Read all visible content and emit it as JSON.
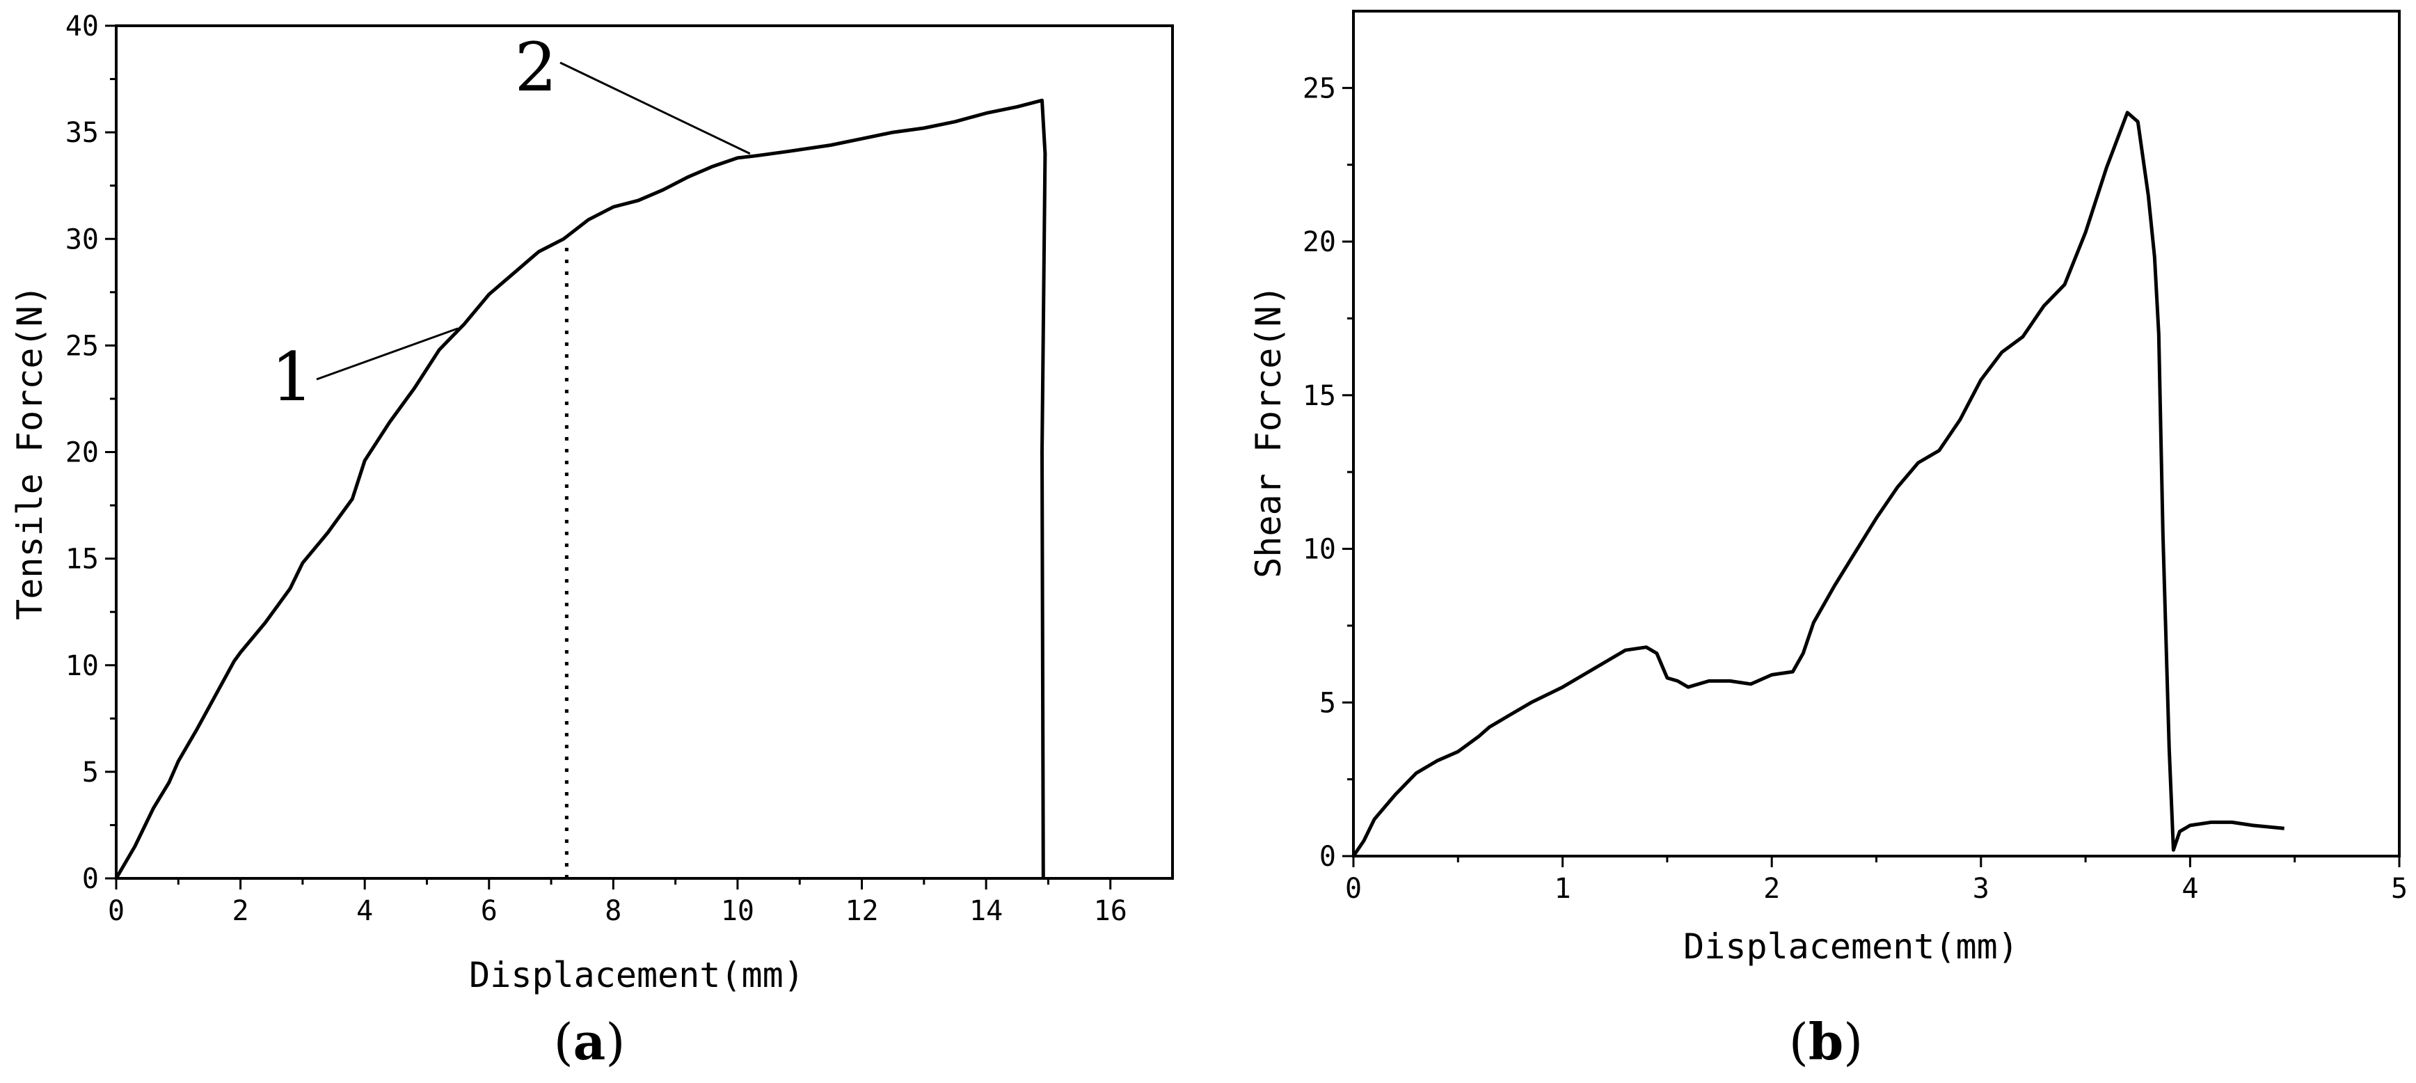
{
  "colors": {
    "line": "#000000",
    "background": "#ffffff"
  },
  "panels": [
    {
      "label_open": "(",
      "label_letter": "a",
      "label_close": ")"
    },
    {
      "label_open": "(",
      "label_letter": "b",
      "label_close": ")"
    }
  ],
  "chart_data": [
    {
      "type": "line",
      "title": "",
      "xlabel": "Displacement(mm)",
      "ylabel": "Tensile Force(N)",
      "xlim": [
        0,
        17
      ],
      "ylim": [
        0,
        40
      ],
      "xticks": [
        0,
        2,
        4,
        6,
        8,
        10,
        12,
        14,
        16
      ],
      "yticks": [
        0,
        5,
        10,
        15,
        20,
        25,
        30,
        35,
        40
      ],
      "grid": false,
      "legend": "none",
      "series": [
        {
          "x": [
            0,
            0.3,
            0.6,
            0.85,
            1.0,
            1.3,
            1.6,
            1.9,
            2.0,
            2.4,
            2.8,
            3.0,
            3.4,
            3.8,
            4.0,
            4.4,
            4.8,
            5.2,
            5.6,
            6.0,
            6.4,
            6.8,
            7.2,
            7.6,
            8.0,
            8.4,
            8.8,
            9.2,
            9.6,
            10.0,
            10.3,
            10.8,
            11.5,
            12.0,
            12.5,
            13.0,
            13.5,
            14.0,
            14.5,
            14.9,
            14.95,
            14.9,
            14.92
          ],
          "y": [
            0,
            1.5,
            3.3,
            4.5,
            5.5,
            7.0,
            8.6,
            10.2,
            10.6,
            12.0,
            13.6,
            14.8,
            16.2,
            17.8,
            19.6,
            21.4,
            23.0,
            24.8,
            26.0,
            27.4,
            28.4,
            29.4,
            30.0,
            30.9,
            31.5,
            31.8,
            32.3,
            32.9,
            33.4,
            33.8,
            33.9,
            34.1,
            34.4,
            34.7,
            35.0,
            35.2,
            35.5,
            35.9,
            36.2,
            36.5,
            34.0,
            20.0,
            0
          ]
        }
      ],
      "annotations": [
        {
          "text": "1",
          "x": 5.5,
          "y": 25.8
        },
        {
          "text": "2",
          "x": 10.2,
          "y": 34.0
        }
      ],
      "reference_lines": [
        {
          "style": "dotted",
          "x": 7.25,
          "y_from": 0,
          "y_to": 29.8
        }
      ]
    },
    {
      "type": "line",
      "title": "",
      "xlabel": "Displacement(mm)",
      "ylabel": "Shear Force(N)",
      "xlim": [
        0,
        5
      ],
      "ylim": [
        0,
        27.5
      ],
      "xticks": [
        0,
        1,
        2,
        3,
        4,
        5
      ],
      "yticks": [
        0,
        5,
        10,
        15,
        20,
        25
      ],
      "grid": false,
      "legend": "none",
      "series": [
        {
          "x": [
            0,
            0.05,
            0.1,
            0.2,
            0.3,
            0.4,
            0.5,
            0.6,
            0.65,
            0.75,
            0.85,
            1.0,
            1.1,
            1.2,
            1.3,
            1.4,
            1.45,
            1.5,
            1.55,
            1.6,
            1.7,
            1.8,
            1.9,
            2.0,
            2.1,
            2.15,
            2.2,
            2.3,
            2.4,
            2.5,
            2.6,
            2.7,
            2.8,
            2.9,
            3.0,
            3.1,
            3.2,
            3.3,
            3.4,
            3.5,
            3.6,
            3.7,
            3.75,
            3.8,
            3.83,
            3.85,
            3.87,
            3.9,
            3.92,
            3.95,
            4.0,
            4.1,
            4.2,
            4.3,
            4.45
          ],
          "y": [
            0,
            0.5,
            1.2,
            2.0,
            2.7,
            3.1,
            3.4,
            3.9,
            4.2,
            4.6,
            5.0,
            5.5,
            5.9,
            6.3,
            6.7,
            6.8,
            6.6,
            5.8,
            5.7,
            5.5,
            5.7,
            5.7,
            5.6,
            5.9,
            6.0,
            6.6,
            7.6,
            8.8,
            9.9,
            11.0,
            12.0,
            12.8,
            13.2,
            14.2,
            15.5,
            16.4,
            16.9,
            17.9,
            18.6,
            20.3,
            22.4,
            24.2,
            23.9,
            21.5,
            19.5,
            17.0,
            10.5,
            3.5,
            0.2,
            0.8,
            1.0,
            1.1,
            1.1,
            1.0,
            0.9
          ]
        }
      ]
    }
  ]
}
